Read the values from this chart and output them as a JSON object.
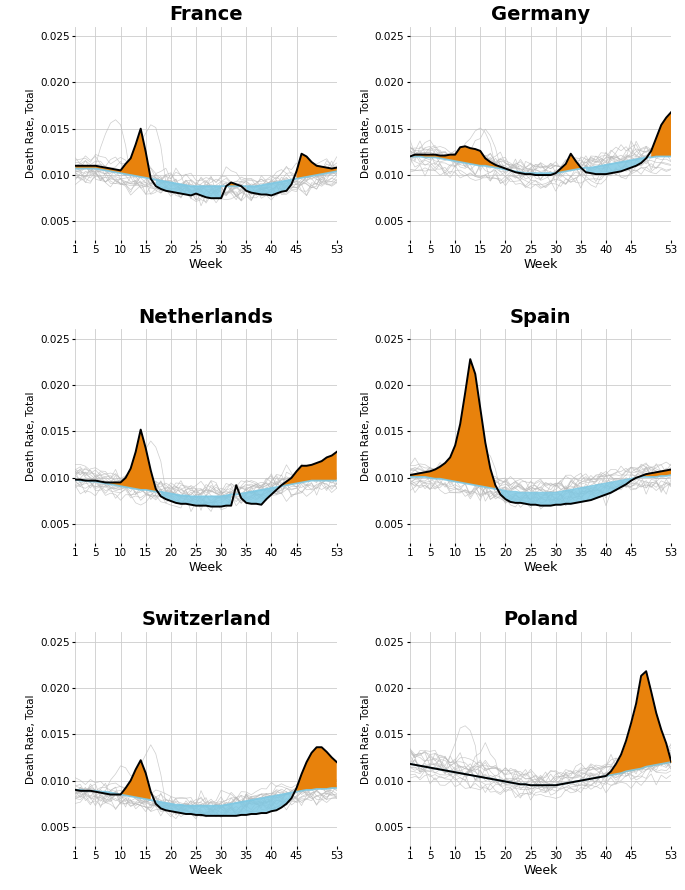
{
  "countries": [
    "France",
    "Germany",
    "Netherlands",
    "Spain",
    "Switzerland",
    "Poland"
  ],
  "ylim": [
    0.003,
    0.026
  ],
  "yticks": [
    0.005,
    0.01,
    0.015,
    0.02,
    0.025
  ],
  "xlim": [
    1,
    53
  ],
  "xticks": [
    1,
    5,
    10,
    15,
    20,
    25,
    30,
    35,
    40,
    45,
    53
  ],
  "xlabel": "Week",
  "ylabel": "Death Rate, Total",
  "orange_color": "#E8820C",
  "blue_color": "#7EC8E3",
  "black_color": "#000000",
  "gray_color": "#B8B8B8",
  "bg_color": "#FFFFFF",
  "grid_color": "#CCCCCC",
  "france_baseline": [
    0.0107,
    0.0107,
    0.0107,
    0.0107,
    0.0107,
    0.0106,
    0.0105,
    0.0104,
    0.0103,
    0.0102,
    0.0101,
    0.01,
    0.0099,
    0.0098,
    0.0097,
    0.0096,
    0.0095,
    0.0094,
    0.0093,
    0.0092,
    0.0091,
    0.009,
    0.0089,
    0.0088,
    0.0088,
    0.0088,
    0.0088,
    0.0088,
    0.0088,
    0.0088,
    0.0088,
    0.0088,
    0.0088,
    0.0088,
    0.0088,
    0.0088,
    0.0088,
    0.0089,
    0.009,
    0.0091,
    0.0092,
    0.0093,
    0.0094,
    0.0095,
    0.0096,
    0.0097,
    0.0098,
    0.0099,
    0.01,
    0.0101,
    0.0102,
    0.0103,
    0.0104
  ],
  "france_current": [
    0.011,
    0.011,
    0.011,
    0.011,
    0.011,
    0.0109,
    0.0108,
    0.0107,
    0.0106,
    0.0105,
    0.0112,
    0.0118,
    0.0133,
    0.015,
    0.0125,
    0.0096,
    0.0088,
    0.0085,
    0.0083,
    0.0082,
    0.0081,
    0.008,
    0.0079,
    0.0078,
    0.008,
    0.0078,
    0.0076,
    0.0075,
    0.0075,
    0.0075,
    0.0088,
    0.0092,
    0.009,
    0.0088,
    0.0083,
    0.0081,
    0.008,
    0.0079,
    0.0079,
    0.0078,
    0.008,
    0.0082,
    0.0083,
    0.009,
    0.0104,
    0.0123,
    0.012,
    0.0114,
    0.011,
    0.0109,
    0.0108,
    0.0107,
    0.0108
  ],
  "germany_baseline": [
    0.012,
    0.012,
    0.012,
    0.0119,
    0.0119,
    0.0119,
    0.0118,
    0.0117,
    0.0116,
    0.0115,
    0.0114,
    0.0113,
    0.0112,
    0.0111,
    0.011,
    0.011,
    0.0109,
    0.0108,
    0.0107,
    0.0106,
    0.0105,
    0.0104,
    0.0103,
    0.0102,
    0.0102,
    0.0102,
    0.0102,
    0.0102,
    0.0102,
    0.0102,
    0.0103,
    0.0104,
    0.0105,
    0.0106,
    0.0107,
    0.0108,
    0.0108,
    0.0109,
    0.011,
    0.0111,
    0.0112,
    0.0113,
    0.0114,
    0.0115,
    0.0116,
    0.0117,
    0.0118,
    0.0119,
    0.0119,
    0.012,
    0.012,
    0.012,
    0.012
  ],
  "germany_current": [
    0.012,
    0.0122,
    0.0122,
    0.0122,
    0.0122,
    0.0122,
    0.0121,
    0.0121,
    0.0122,
    0.0122,
    0.013,
    0.0131,
    0.0129,
    0.0128,
    0.0126,
    0.0118,
    0.0114,
    0.0111,
    0.0109,
    0.0107,
    0.0105,
    0.0103,
    0.0102,
    0.0101,
    0.0101,
    0.01,
    0.01,
    0.01,
    0.01,
    0.0102,
    0.0107,
    0.0112,
    0.0123,
    0.0115,
    0.0108,
    0.0103,
    0.0102,
    0.0101,
    0.0101,
    0.0101,
    0.0102,
    0.0103,
    0.0104,
    0.0106,
    0.0108,
    0.011,
    0.0113,
    0.0118,
    0.0126,
    0.014,
    0.0154,
    0.0162,
    0.0168
  ],
  "netherlands_baseline": [
    0.0098,
    0.0097,
    0.0097,
    0.0096,
    0.0096,
    0.0095,
    0.0094,
    0.0093,
    0.0092,
    0.0091,
    0.009,
    0.0089,
    0.0088,
    0.0087,
    0.0087,
    0.0086,
    0.0085,
    0.0085,
    0.0084,
    0.0083,
    0.0082,
    0.0081,
    0.0081,
    0.008,
    0.008,
    0.008,
    0.008,
    0.008,
    0.008,
    0.008,
    0.0081,
    0.0082,
    0.0082,
    0.0083,
    0.0084,
    0.0085,
    0.0086,
    0.0087,
    0.0088,
    0.0089,
    0.009,
    0.0091,
    0.0092,
    0.0093,
    0.0094,
    0.0095,
    0.0096,
    0.0097,
    0.0097,
    0.0097,
    0.0097,
    0.0097,
    0.0097
  ],
  "netherlands_current": [
    0.0098,
    0.0098,
    0.0097,
    0.0097,
    0.0097,
    0.0096,
    0.0095,
    0.0095,
    0.0095,
    0.0095,
    0.01,
    0.011,
    0.0128,
    0.0152,
    0.0132,
    0.0108,
    0.0088,
    0.008,
    0.0077,
    0.0075,
    0.0073,
    0.0072,
    0.0072,
    0.0071,
    0.007,
    0.007,
    0.007,
    0.0069,
    0.0069,
    0.0069,
    0.007,
    0.007,
    0.0092,
    0.0078,
    0.0073,
    0.0072,
    0.0072,
    0.0071,
    0.0077,
    0.0082,
    0.0087,
    0.0092,
    0.0096,
    0.01,
    0.0107,
    0.0113,
    0.0113,
    0.0114,
    0.0116,
    0.0118,
    0.0122,
    0.0124,
    0.0128
  ],
  "spain_baseline": [
    0.0101,
    0.0101,
    0.0101,
    0.0101,
    0.01,
    0.0099,
    0.0099,
    0.0098,
    0.0097,
    0.0096,
    0.0095,
    0.0094,
    0.0093,
    0.0092,
    0.0091,
    0.009,
    0.0089,
    0.0088,
    0.0087,
    0.0086,
    0.0085,
    0.0085,
    0.0084,
    0.0084,
    0.0084,
    0.0084,
    0.0084,
    0.0084,
    0.0084,
    0.0084,
    0.0085,
    0.0086,
    0.0087,
    0.0088,
    0.0089,
    0.009,
    0.0091,
    0.0092,
    0.0093,
    0.0094,
    0.0095,
    0.0096,
    0.0097,
    0.0098,
    0.0099,
    0.01,
    0.0101,
    0.0101,
    0.0101,
    0.0101,
    0.0102,
    0.0102,
    0.0103
  ],
  "spain_current": [
    0.0103,
    0.0104,
    0.0105,
    0.0106,
    0.0107,
    0.0109,
    0.0112,
    0.0116,
    0.0122,
    0.0135,
    0.0158,
    0.0192,
    0.0228,
    0.0212,
    0.0175,
    0.0138,
    0.011,
    0.0092,
    0.0082,
    0.0077,
    0.0074,
    0.0073,
    0.0073,
    0.0072,
    0.0071,
    0.0071,
    0.007,
    0.007,
    0.007,
    0.0071,
    0.0071,
    0.0072,
    0.0072,
    0.0073,
    0.0074,
    0.0075,
    0.0076,
    0.0078,
    0.008,
    0.0082,
    0.0084,
    0.0087,
    0.009,
    0.0093,
    0.0097,
    0.01,
    0.0102,
    0.0104,
    0.0105,
    0.0106,
    0.0107,
    0.0108,
    0.0109
  ],
  "switzerland_baseline": [
    0.009,
    0.009,
    0.0089,
    0.0089,
    0.0089,
    0.0088,
    0.0088,
    0.0087,
    0.0086,
    0.0085,
    0.0084,
    0.0083,
    0.0082,
    0.0081,
    0.008,
    0.0079,
    0.0078,
    0.0077,
    0.0076,
    0.0075,
    0.0074,
    0.0074,
    0.0073,
    0.0073,
    0.0073,
    0.0073,
    0.0073,
    0.0073,
    0.0073,
    0.0073,
    0.0074,
    0.0075,
    0.0076,
    0.0077,
    0.0078,
    0.0079,
    0.008,
    0.0081,
    0.0082,
    0.0083,
    0.0084,
    0.0085,
    0.0086,
    0.0087,
    0.0088,
    0.0089,
    0.009,
    0.009,
    0.0091,
    0.0091,
    0.0091,
    0.0092,
    0.0092
  ],
  "switzerland_current": [
    0.009,
    0.0089,
    0.0089,
    0.0089,
    0.0088,
    0.0087,
    0.0086,
    0.0085,
    0.0085,
    0.0085,
    0.0092,
    0.01,
    0.0112,
    0.0122,
    0.0108,
    0.0088,
    0.0075,
    0.007,
    0.0068,
    0.0067,
    0.0066,
    0.0065,
    0.0064,
    0.0064,
    0.0063,
    0.0063,
    0.0062,
    0.0062,
    0.0062,
    0.0062,
    0.0062,
    0.0062,
    0.0062,
    0.0063,
    0.0063,
    0.0064,
    0.0064,
    0.0065,
    0.0065,
    0.0067,
    0.0068,
    0.0071,
    0.0075,
    0.0081,
    0.0092,
    0.0107,
    0.012,
    0.013,
    0.0136,
    0.0136,
    0.0131,
    0.0125,
    0.012
  ],
  "poland_baseline": [
    0.0118,
    0.0117,
    0.0116,
    0.0115,
    0.0114,
    0.0113,
    0.0112,
    0.0111,
    0.011,
    0.0109,
    0.0108,
    0.0107,
    0.0106,
    0.0105,
    0.0104,
    0.0103,
    0.0102,
    0.0101,
    0.01,
    0.0099,
    0.0098,
    0.0097,
    0.0096,
    0.0096,
    0.0095,
    0.0095,
    0.0095,
    0.0095,
    0.0095,
    0.0095,
    0.0096,
    0.0097,
    0.0098,
    0.0099,
    0.01,
    0.0101,
    0.0102,
    0.0103,
    0.0104,
    0.0105,
    0.0106,
    0.0107,
    0.0108,
    0.011,
    0.0111,
    0.0112,
    0.0113,
    0.0115,
    0.0116,
    0.0117,
    0.0118,
    0.0119,
    0.012
  ],
  "poland_current": [
    0.0118,
    0.0117,
    0.0116,
    0.0115,
    0.0114,
    0.0113,
    0.0112,
    0.0111,
    0.011,
    0.0109,
    0.0108,
    0.0107,
    0.0106,
    0.0105,
    0.0104,
    0.0103,
    0.0102,
    0.0101,
    0.01,
    0.0099,
    0.0098,
    0.0097,
    0.0096,
    0.0096,
    0.0095,
    0.0095,
    0.0095,
    0.0095,
    0.0095,
    0.0095,
    0.0096,
    0.0097,
    0.0098,
    0.0099,
    0.01,
    0.0101,
    0.0102,
    0.0103,
    0.0104,
    0.0105,
    0.011,
    0.0118,
    0.0128,
    0.0143,
    0.0162,
    0.0183,
    0.0213,
    0.0218,
    0.0196,
    0.0173,
    0.0155,
    0.014,
    0.012
  ]
}
